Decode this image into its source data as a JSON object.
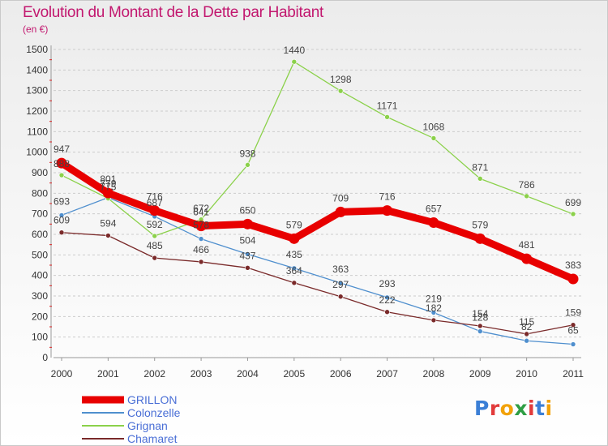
{
  "header": {
    "title": "Evolution du Montant de la Dette par Habitant",
    "subtitle": "(en €)"
  },
  "logo": {
    "text": "Proxiti"
  },
  "colors": {
    "title": "#c2186f",
    "legend_text": "#4a6fd6",
    "grid": "#cccccc"
  },
  "chart_data": {
    "type": "line",
    "title": "Evolution du Montant de la Dette par Habitant",
    "subtitle": "(en €)",
    "xlabel": "",
    "ylabel": "",
    "x": [
      "2000",
      "2001",
      "2002",
      "2003",
      "2004",
      "2005",
      "2006",
      "2007",
      "2008",
      "2009",
      "2010",
      "2011"
    ],
    "ylim": [
      0,
      1500
    ],
    "yticks": [
      0,
      100,
      200,
      300,
      400,
      500,
      600,
      700,
      800,
      900,
      1000,
      1100,
      1200,
      1300,
      1400,
      1500
    ],
    "grid": "horizontal dashed",
    "legend_position": "bottom-left",
    "series": [
      {
        "name": "GRILLON",
        "color": "#e80000",
        "weight": "thick",
        "values": [
          947,
          801,
          716,
          641,
          650,
          579,
          709,
          716,
          657,
          579,
          481,
          383
        ]
      },
      {
        "name": "Colonzelle",
        "color": "#4f8fce",
        "weight": "thin",
        "values": [
          693,
          779,
          687,
          578,
          504,
          435,
          363,
          293,
          219,
          128,
          82,
          65
        ]
      },
      {
        "name": "Grignan",
        "color": "#8bd14a",
        "weight": "thin",
        "values": [
          888,
          775,
          592,
          672,
          938,
          1440,
          1298,
          1171,
          1068,
          871,
          786,
          699
        ]
      },
      {
        "name": "Chamaret",
        "color": "#7a2a2a",
        "weight": "thin",
        "values": [
          609,
          594,
          485,
          466,
          437,
          364,
          297,
          222,
          182,
          154,
          115,
          159
        ]
      }
    ]
  }
}
